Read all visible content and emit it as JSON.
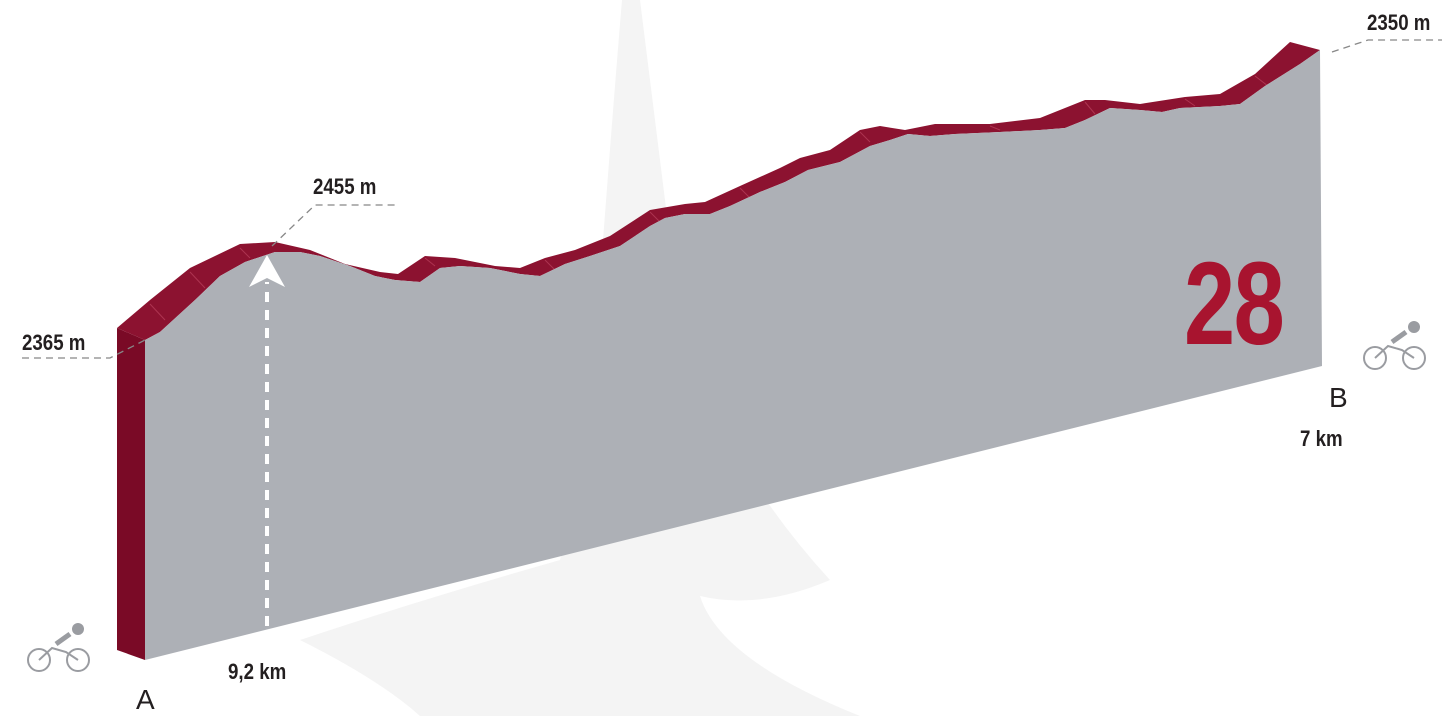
{
  "route_number": "28",
  "start": {
    "point": "A",
    "altitude": "2365 m",
    "icon": "cyclist-icon"
  },
  "summit": {
    "altitude": "2455 m",
    "distance": "9,2 km"
  },
  "end": {
    "point": "B",
    "altitude": "2350 m",
    "distance": "7 km",
    "icon": "cyclist-icon"
  },
  "colors": {
    "ridge": "#8c1230",
    "ridge_side": "#7a0a26",
    "wall": "#adb0b6",
    "badge": "#a8142f",
    "icon": "#9a9ca1",
    "watermark": "#f3f3f3"
  }
}
